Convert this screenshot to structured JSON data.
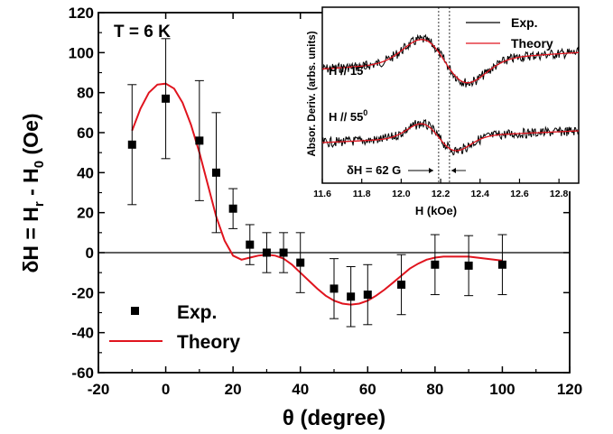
{
  "chart_data": [
    {
      "type": "scatter",
      "temperature_label": "T = 6 K",
      "xlabel": "θ (degree)",
      "ylabel": "δH = Hr - H0 (Oe)",
      "xlim": [
        -20,
        120
      ],
      "ylim": [
        -60,
        120
      ],
      "x_ticks": [
        -20,
        0,
        20,
        40,
        60,
        80,
        100,
        120
      ],
      "y_ticks": [
        -60,
        -40,
        -20,
        0,
        20,
        40,
        60,
        80,
        100,
        120
      ],
      "zero_line": true,
      "legend": {
        "placement": "bottom-left",
        "entries": [
          "Exp.",
          "Theory"
        ]
      },
      "series": [
        {
          "name": "Exp.",
          "marker": "square",
          "color": "#000000",
          "x": [
            -10,
            0,
            10,
            15,
            20,
            25,
            30,
            35,
            40,
            50,
            55,
            60,
            70,
            80,
            90,
            100
          ],
          "y": [
            54,
            77,
            56,
            40,
            22,
            4,
            0,
            0,
            -5,
            -18,
            -22,
            -21,
            -16,
            -6,
            -6.5,
            -6
          ],
          "error": [
            30,
            30,
            30,
            30,
            10,
            10,
            10,
            10,
            15,
            15,
            15,
            15,
            15,
            15,
            15,
            15
          ]
        },
        {
          "name": "Theory",
          "type": "line",
          "color": "#e0141e",
          "x": [
            -10,
            -7.5,
            -5,
            -2.5,
            0,
            2.5,
            5,
            7.5,
            10,
            12.5,
            15,
            17.5,
            20,
            22.5,
            25,
            27.5,
            30,
            32.5,
            35,
            37.5,
            40,
            42.5,
            45,
            47.5,
            50,
            52.5,
            55,
            57.5,
            60,
            62.5,
            65,
            67.5,
            70,
            72.5,
            75,
            77.5,
            80,
            82.5,
            85,
            87.5,
            90,
            92.5,
            95,
            97.5,
            100
          ],
          "y": [
            61,
            72,
            80,
            84,
            84.5,
            82,
            75,
            64,
            50,
            34,
            18,
            6,
            -1.5,
            -3.5,
            -2.5,
            -1.5,
            -1,
            -1.5,
            -3,
            -6,
            -10,
            -14,
            -18,
            -21.5,
            -24,
            -25.5,
            -26,
            -25.5,
            -24,
            -21.5,
            -18.5,
            -15,
            -11.5,
            -8,
            -5.5,
            -3.5,
            -2.5,
            -2,
            -2,
            -2,
            -2,
            -2.5,
            -3,
            -3.5,
            -4
          ]
        }
      ]
    },
    {
      "type": "line",
      "xlabel": "H (kOe)",
      "ylabel": "Absor. Deriv. (arbs. units)",
      "xlim": [
        11.6,
        12.9
      ],
      "x_ticks": [
        "11.6",
        "11.8",
        "12.0",
        "12.2",
        "12.4",
        "12.6",
        "12.8"
      ],
      "legend": {
        "placement": "top-right",
        "entries": [
          "Exp.",
          "Theory"
        ]
      },
      "curve_labels": [
        "H // 15°",
        "H // 55°"
      ],
      "annotation": "δH = 62 G",
      "markers_x": [
        12.19,
        12.245
      ],
      "series": [
        {
          "name": "Exp.",
          "color": "#000000"
        },
        {
          "name": "Theory",
          "color": "#e0141e"
        }
      ]
    }
  ]
}
